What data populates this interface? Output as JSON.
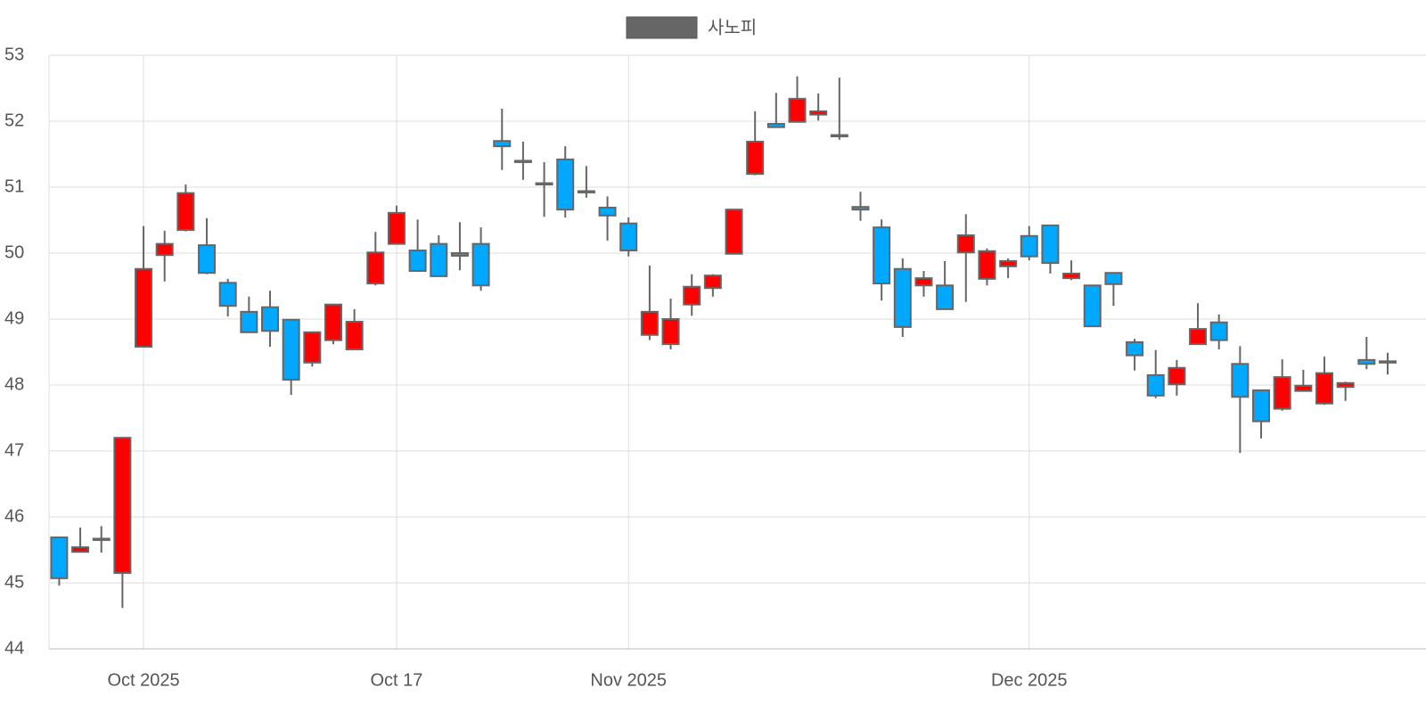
{
  "chart_data": {
    "type": "candlestick",
    "name": "사노피",
    "color": "#666666",
    "increasing_color": "#ff0000",
    "decreasing_color": "#00a8ff",
    "x": [
      "2025-09-25",
      "2025-09-26",
      "2025-09-29",
      "2025-09-30",
      "2025-10-01",
      "2025-10-02",
      "2025-10-03",
      "2025-10-06",
      "2025-10-07",
      "2025-10-08",
      "2025-10-09",
      "2025-10-10",
      "2025-10-13",
      "2025-10-14",
      "2025-10-15",
      "2025-10-16",
      "2025-10-17",
      "2025-10-20",
      "2025-10-21",
      "2025-10-22",
      "2025-10-23",
      "2025-10-24",
      "2025-10-27",
      "2025-10-28",
      "2025-10-29",
      "2025-10-30",
      "2025-10-31",
      "2025-11-03",
      "2025-11-04",
      "2025-11-05",
      "2025-11-06",
      "2025-11-07",
      "2025-11-10",
      "2025-11-11",
      "2025-11-12",
      "2025-11-13",
      "2025-11-14",
      "2025-11-17",
      "2025-11-18",
      "2025-11-19",
      "2025-11-20",
      "2025-11-21",
      "2025-11-24",
      "2025-11-25",
      "2025-11-26",
      "2025-11-28",
      "2025-12-01",
      "2025-12-02",
      "2025-12-03",
      "2025-12-04",
      "2025-12-05",
      "2025-12-08",
      "2025-12-09",
      "2025-12-10",
      "2025-12-11",
      "2025-12-12",
      "2025-12-15",
      "2025-12-16",
      "2025-12-17",
      "2025-12-18",
      "2025-12-19",
      "2025-12-22",
      "2025-12-23",
      "2025-12-24"
    ],
    "open": [
      45.69,
      45.47,
      45.67,
      45.15,
      48.58,
      49.97,
      50.35,
      50.12,
      49.55,
      49.11,
      49.18,
      48.99,
      48.34,
      48.68,
      48.54,
      49.54,
      50.14,
      50.04,
      50.14,
      50.0,
      50.14,
      51.7,
      51.4,
      51.06,
      51.42,
      50.94,
      50.69,
      50.45,
      48.76,
      48.62,
      49.22,
      49.47,
      49.99,
      51.2,
      51.96,
      51.99,
      52.1,
      51.79,
      50.7,
      50.39,
      49.76,
      49.51,
      49.51,
      50.01,
      49.61,
      49.8,
      50.26,
      50.42,
      49.62,
      49.51,
      49.7,
      48.65,
      48.15,
      48.01,
      48.62,
      48.95,
      48.32,
      47.92,
      47.64,
      47.91,
      47.72,
      47.97,
      48.38,
      48.36
    ],
    "high": [
      45.69,
      45.84,
      45.86,
      47.2,
      50.41,
      50.34,
      51.04,
      50.53,
      49.61,
      49.34,
      49.43,
      48.99,
      48.8,
      49.22,
      49.15,
      50.32,
      50.72,
      50.51,
      50.27,
      50.47,
      50.39,
      52.19,
      51.69,
      51.38,
      51.62,
      51.32,
      50.86,
      50.54,
      49.81,
      49.31,
      49.68,
      49.68,
      50.66,
      52.15,
      52.43,
      52.68,
      52.42,
      52.66,
      50.93,
      50.51,
      49.92,
      49.73,
      49.88,
      50.59,
      50.07,
      49.92,
      50.41,
      50.42,
      49.89,
      49.51,
      49.7,
      48.7,
      48.53,
      48.38,
      49.24,
      49.07,
      48.59,
      47.92,
      48.39,
      48.23,
      48.43,
      48.05,
      48.73,
      48.49
    ],
    "low": [
      44.96,
      45.47,
      45.46,
      44.62,
      48.58,
      49.57,
      50.33,
      49.68,
      49.04,
      48.79,
      48.58,
      47.85,
      48.28,
      48.62,
      48.54,
      49.51,
      50.14,
      49.73,
      49.65,
      49.74,
      49.43,
      51.26,
      51.11,
      50.55,
      50.54,
      50.84,
      50.19,
      49.95,
      48.68,
      48.54,
      49.05,
      49.34,
      49.99,
      51.18,
      51.9,
      51.99,
      52.01,
      51.72,
      50.49,
      49.28,
      48.73,
      49.34,
      49.15,
      49.26,
      49.51,
      49.62,
      49.89,
      49.69,
      49.59,
      48.89,
      49.2,
      48.22,
      47.8,
      47.84,
      48.62,
      48.54,
      46.97,
      47.19,
      47.61,
      47.9,
      47.7,
      47.76,
      48.24,
      48.16
    ],
    "close": [
      45.07,
      45.54,
      45.65,
      47.2,
      49.76,
      50.14,
      50.91,
      49.7,
      49.2,
      48.8,
      48.82,
      48.08,
      48.8,
      49.22,
      48.96,
      50.01,
      50.61,
      49.73,
      49.65,
      49.96,
      49.51,
      51.62,
      51.38,
      51.05,
      50.66,
      50.92,
      50.57,
      50.04,
      49.11,
      49.0,
      49.49,
      49.66,
      50.66,
      51.69,
      51.91,
      52.34,
      52.15,
      51.77,
      50.66,
      49.54,
      48.88,
      49.62,
      49.15,
      50.27,
      50.03,
      49.88,
      49.95,
      49.85,
      49.69,
      48.89,
      49.53,
      48.45,
      47.84,
      48.26,
      48.85,
      48.68,
      47.82,
      47.45,
      48.12,
      47.99,
      48.18,
      48.03,
      48.32,
      48.34
    ],
    "ylim": [
      44,
      53
    ],
    "yticks": [
      44,
      45,
      46,
      47,
      48,
      49,
      50,
      51,
      52,
      53
    ],
    "xticks": [
      {
        "value": "2025-10-01",
        "label": "Oct 2025"
      },
      {
        "value": "2025-10-17",
        "label": "Oct 17"
      },
      {
        "value": "2025-11-01",
        "label": "Nov 2025"
      },
      {
        "value": "2025-12-01",
        "label": "Dec 2025"
      }
    ],
    "grid": true
  }
}
